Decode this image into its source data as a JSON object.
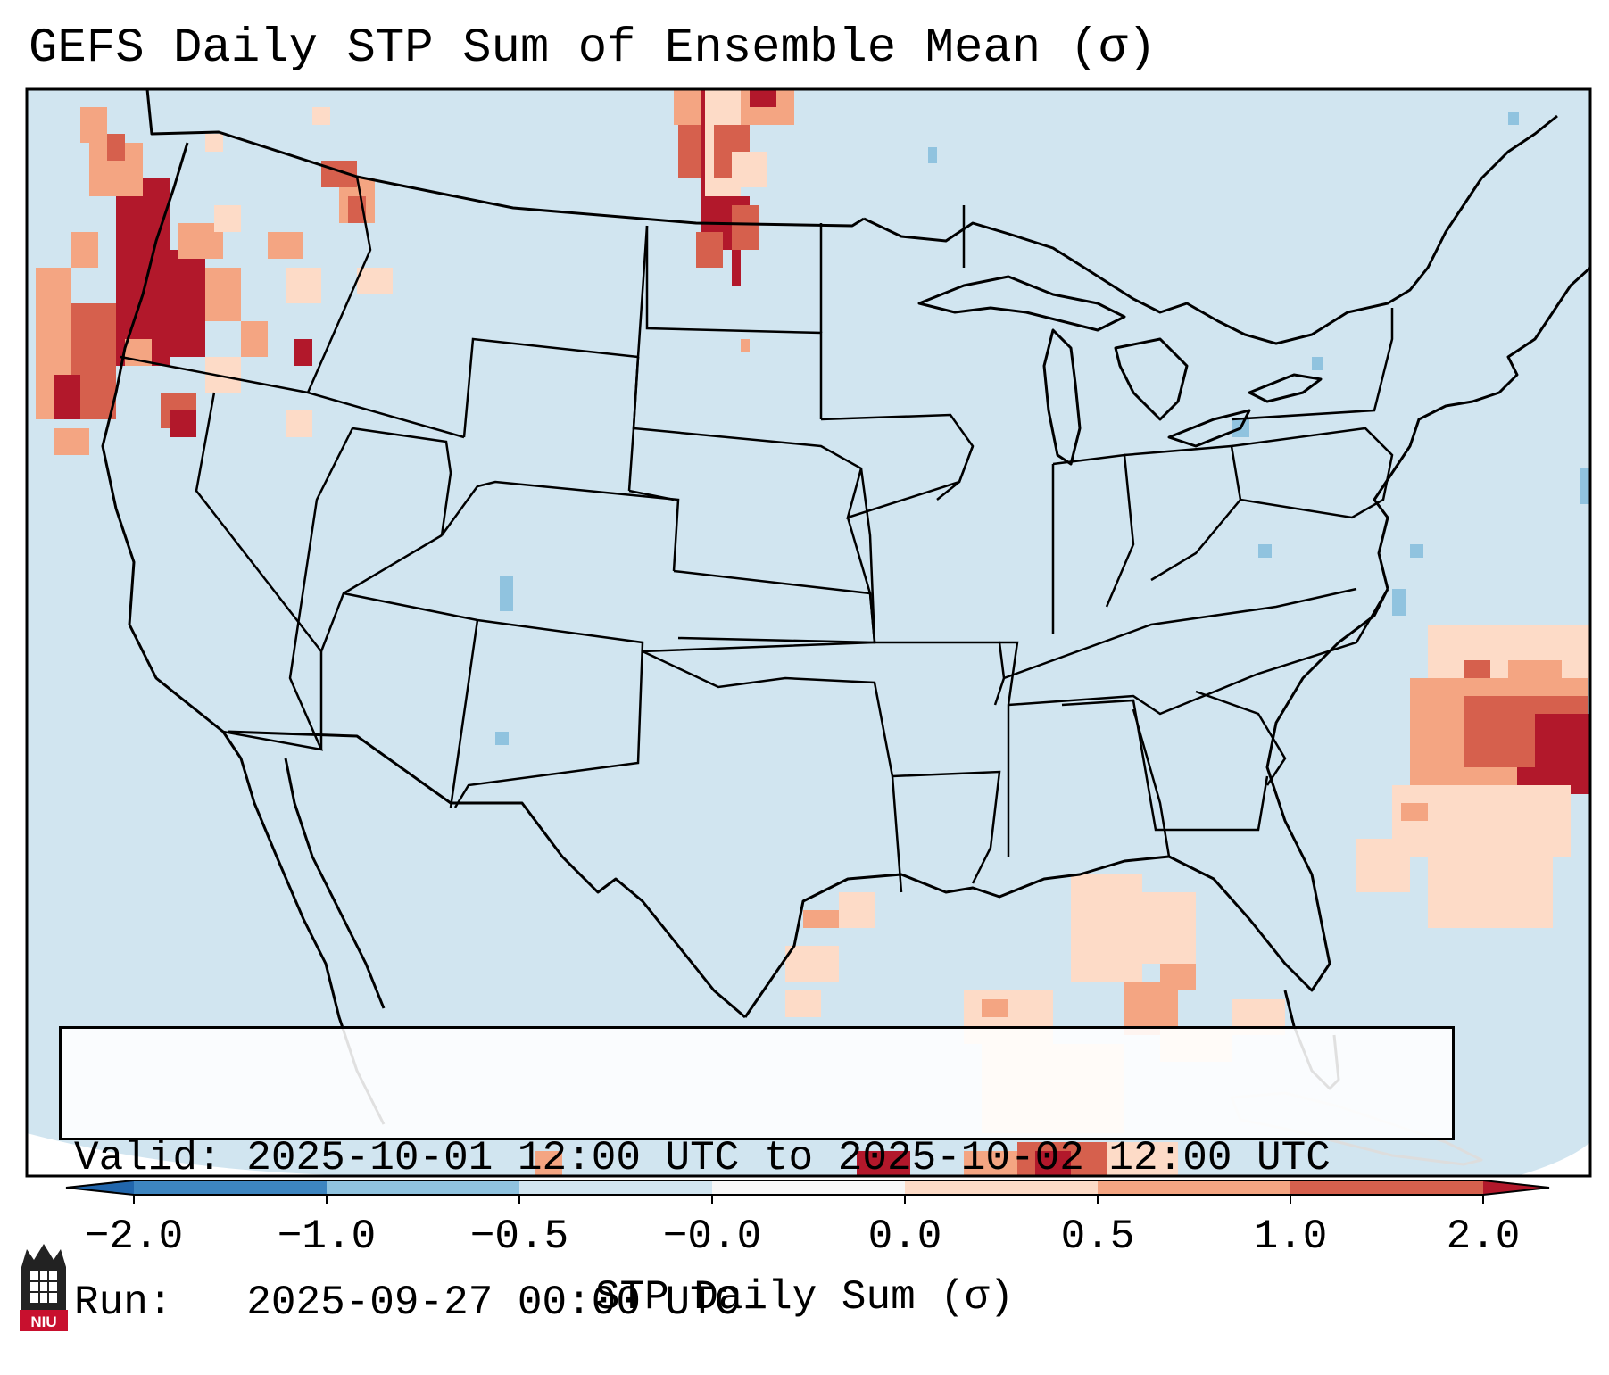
{
  "title": "GEFS Daily STP Sum of Ensemble Mean (σ)",
  "valid_label": "Valid:",
  "valid_value": "2025-10-01 12:00 UTC to 2025-10-02 12:00 UTC",
  "run_label": "Run:",
  "run_value": "2025-09-27 00:00 UTC",
  "colorbar": {
    "label": "STP Daily Sum (σ)",
    "tick_labels": [
      "−2.0",
      "−1.0",
      "−0.5",
      "−0.0",
      "0.0",
      "0.5",
      "1.0",
      "2.0"
    ],
    "bin_colors": [
      "#3d85c0",
      "#90c3df",
      "#d1e5f0",
      "#f7f7f7",
      "#fddbc7",
      "#f4a582",
      "#d6604d"
    ],
    "extend_low_color": "#2166ac",
    "extend_high_color": "#b2182b"
  },
  "map": {
    "projection": "lambert-conformal",
    "region": "Contiguous United States",
    "background_color": "#d1e5f0",
    "border_color": "#000000"
  },
  "logo": {
    "text": "NIU",
    "icon": "niu-logo-icon"
  }
}
